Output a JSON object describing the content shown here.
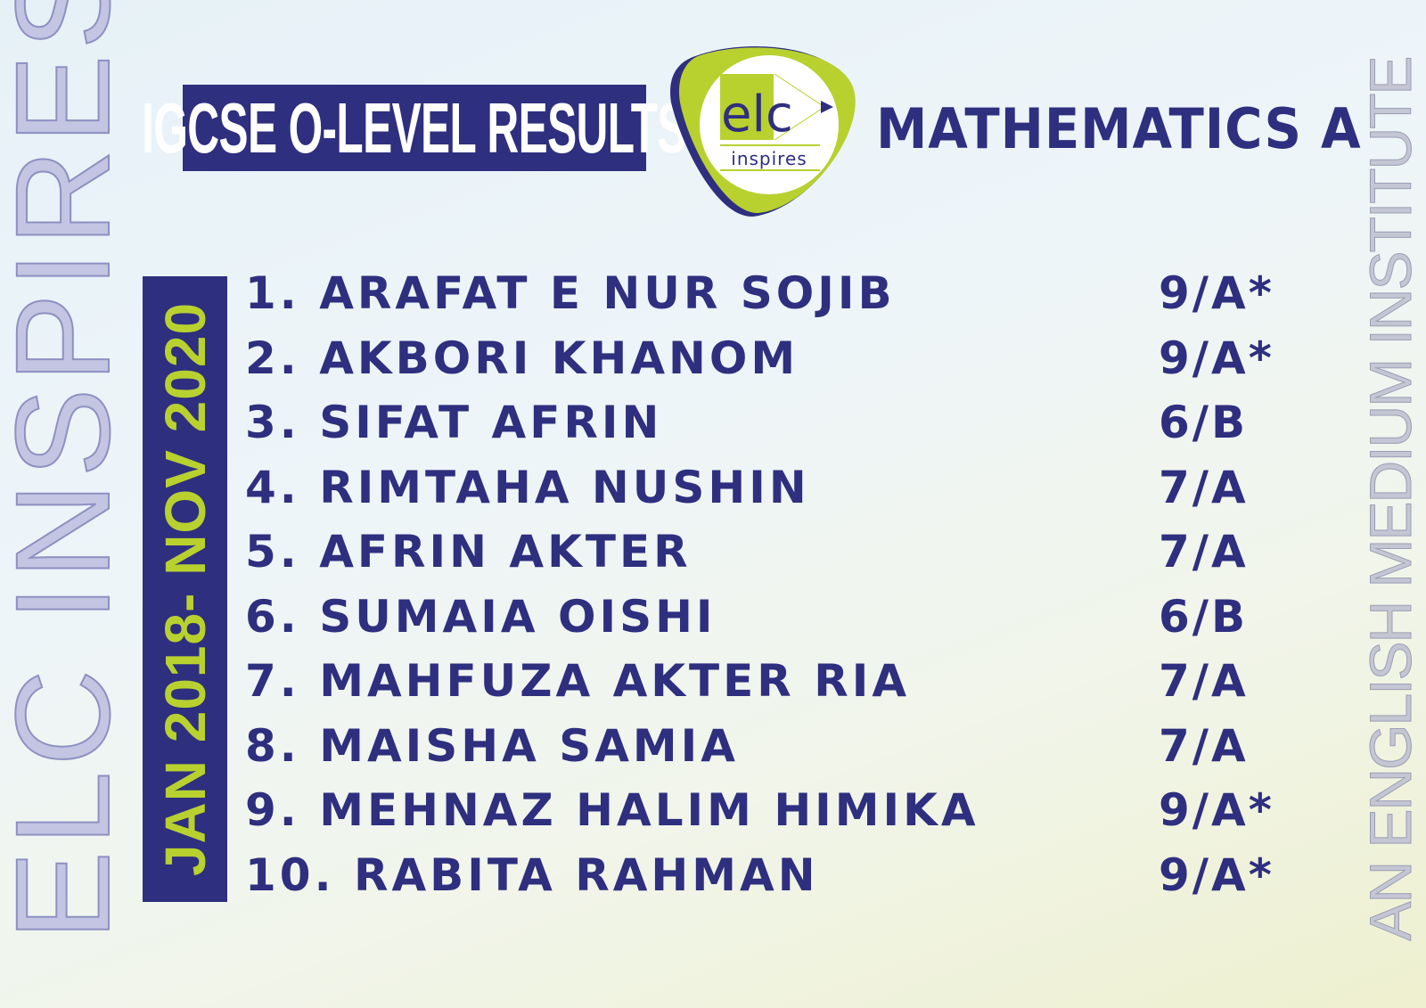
{
  "side_left_text": "ELC INSPIRES",
  "side_right_text": "AN ENGLISH MEDIUM INSTITUTE",
  "title": "IGCSE O-LEVEL RESULTS",
  "subject": "MATHEMATICS A",
  "logo": {
    "text": "elc",
    "tagline": "inspires"
  },
  "date_range": "JAN 2018- NOV 2020",
  "colors": {
    "navy": "#2e2f7f",
    "lime": "#b8d12f"
  },
  "results": [
    {
      "name": "1. ARAFAT E NUR SOJIB",
      "grade": "9/A*"
    },
    {
      "name": "2. AKBORI KHANOM",
      "grade": "9/A*"
    },
    {
      "name": "3. SIFAT AFRIN",
      "grade": "6/B"
    },
    {
      "name": "4. RIMTAHA NUSHIN",
      "grade": "7/A"
    },
    {
      "name": "5. AFRIN AKTER",
      "grade": "7/A"
    },
    {
      "name": "6. SUMAIA OISHI",
      "grade": "6/B"
    },
    {
      "name": "7. MAHFUZA AKTER RIA",
      "grade": "7/A"
    },
    {
      "name": "8. MAISHA SAMIA",
      "grade": "7/A"
    },
    {
      "name": "9. MEHNAZ HALIM HIMIKA",
      "grade": "9/A*"
    },
    {
      "name": "10. RABITA RAHMAN",
      "grade": "9/A*"
    }
  ]
}
